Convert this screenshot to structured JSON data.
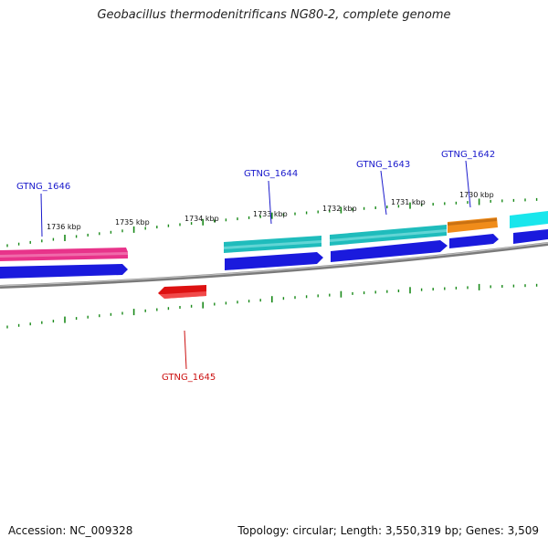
{
  "title": "Geobacillus thermodenitrificans NG80-2, complete genome",
  "footer": {
    "accession": "Accession: NC_009328",
    "summary": "Topology: circular; Length: 3,550,319 bp; Genes: 3,509"
  },
  "ruler_labels": [
    "1736 kbp",
    "1735 kbp",
    "1734 kbp",
    "1733 kbp",
    "1732 kbp",
    "1731 kbp",
    "1730 kbp"
  ],
  "genes": [
    {
      "name": "GTNG_1646",
      "label_color": "#1a1acc",
      "color": "#e8338a",
      "strand": "+"
    },
    {
      "name": "GTNG_1645",
      "label_color": "#cc1111",
      "color": "#dd1111",
      "strand": "-"
    },
    {
      "name": "GTNG_1644",
      "label_color": "#1a1acc",
      "color": "#1fbcbc",
      "strand": "+"
    },
    {
      "name": "GTNG_1643",
      "label_color": "#1a1acc",
      "color": "#1fbcbc",
      "strand": "+"
    },
    {
      "name": "GTNG_1642",
      "label_color": "#1a1acc",
      "color": "#f08c1a",
      "strand": "+"
    }
  ],
  "colors": {
    "cds": "#1a1add",
    "backbone": "#8a8a8a",
    "ticks": "#1a8a1a",
    "gene_teal": "#1fbcbc",
    "gene_cyan": "#19e6ec"
  }
}
